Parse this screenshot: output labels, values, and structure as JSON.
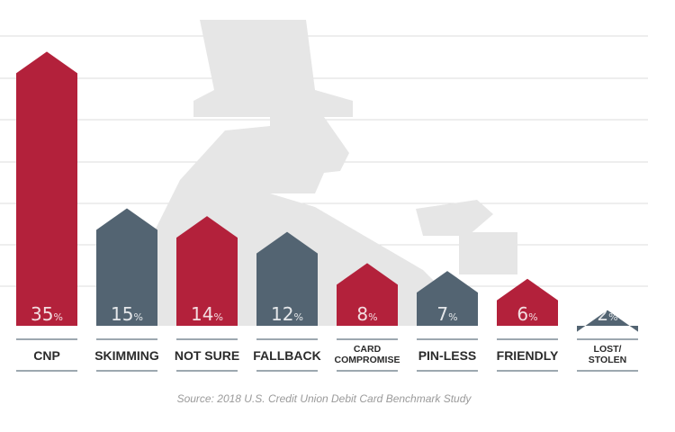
{
  "chart_data": {
    "type": "bar",
    "categories": [
      [
        "CNP"
      ],
      [
        "SKIMMING"
      ],
      [
        "NOT SURE"
      ],
      [
        "FALLBACK"
      ],
      [
        "CARD",
        "COMPROMISE"
      ],
      [
        "PIN-LESS"
      ],
      [
        "FRIENDLY"
      ],
      [
        "LOST/",
        "STOLEN"
      ]
    ],
    "values": [
      35,
      15,
      14,
      12,
      8,
      7,
      6,
      2
    ],
    "value_suffix": "%",
    "bar_colors": [
      "#b3213b",
      "#536472",
      "#b3213b",
      "#536472",
      "#b3213b",
      "#536472",
      "#b3213b",
      "#536472"
    ],
    "ylim": [
      0,
      37
    ],
    "grid": true,
    "gridline_color": "#dcdcdc",
    "background_figure_color": "#e6e6e6",
    "label_underline_color": "#7d8b96"
  },
  "source": "Source: 2018 U.S. Credit Union Debit Card Benchmark Study"
}
